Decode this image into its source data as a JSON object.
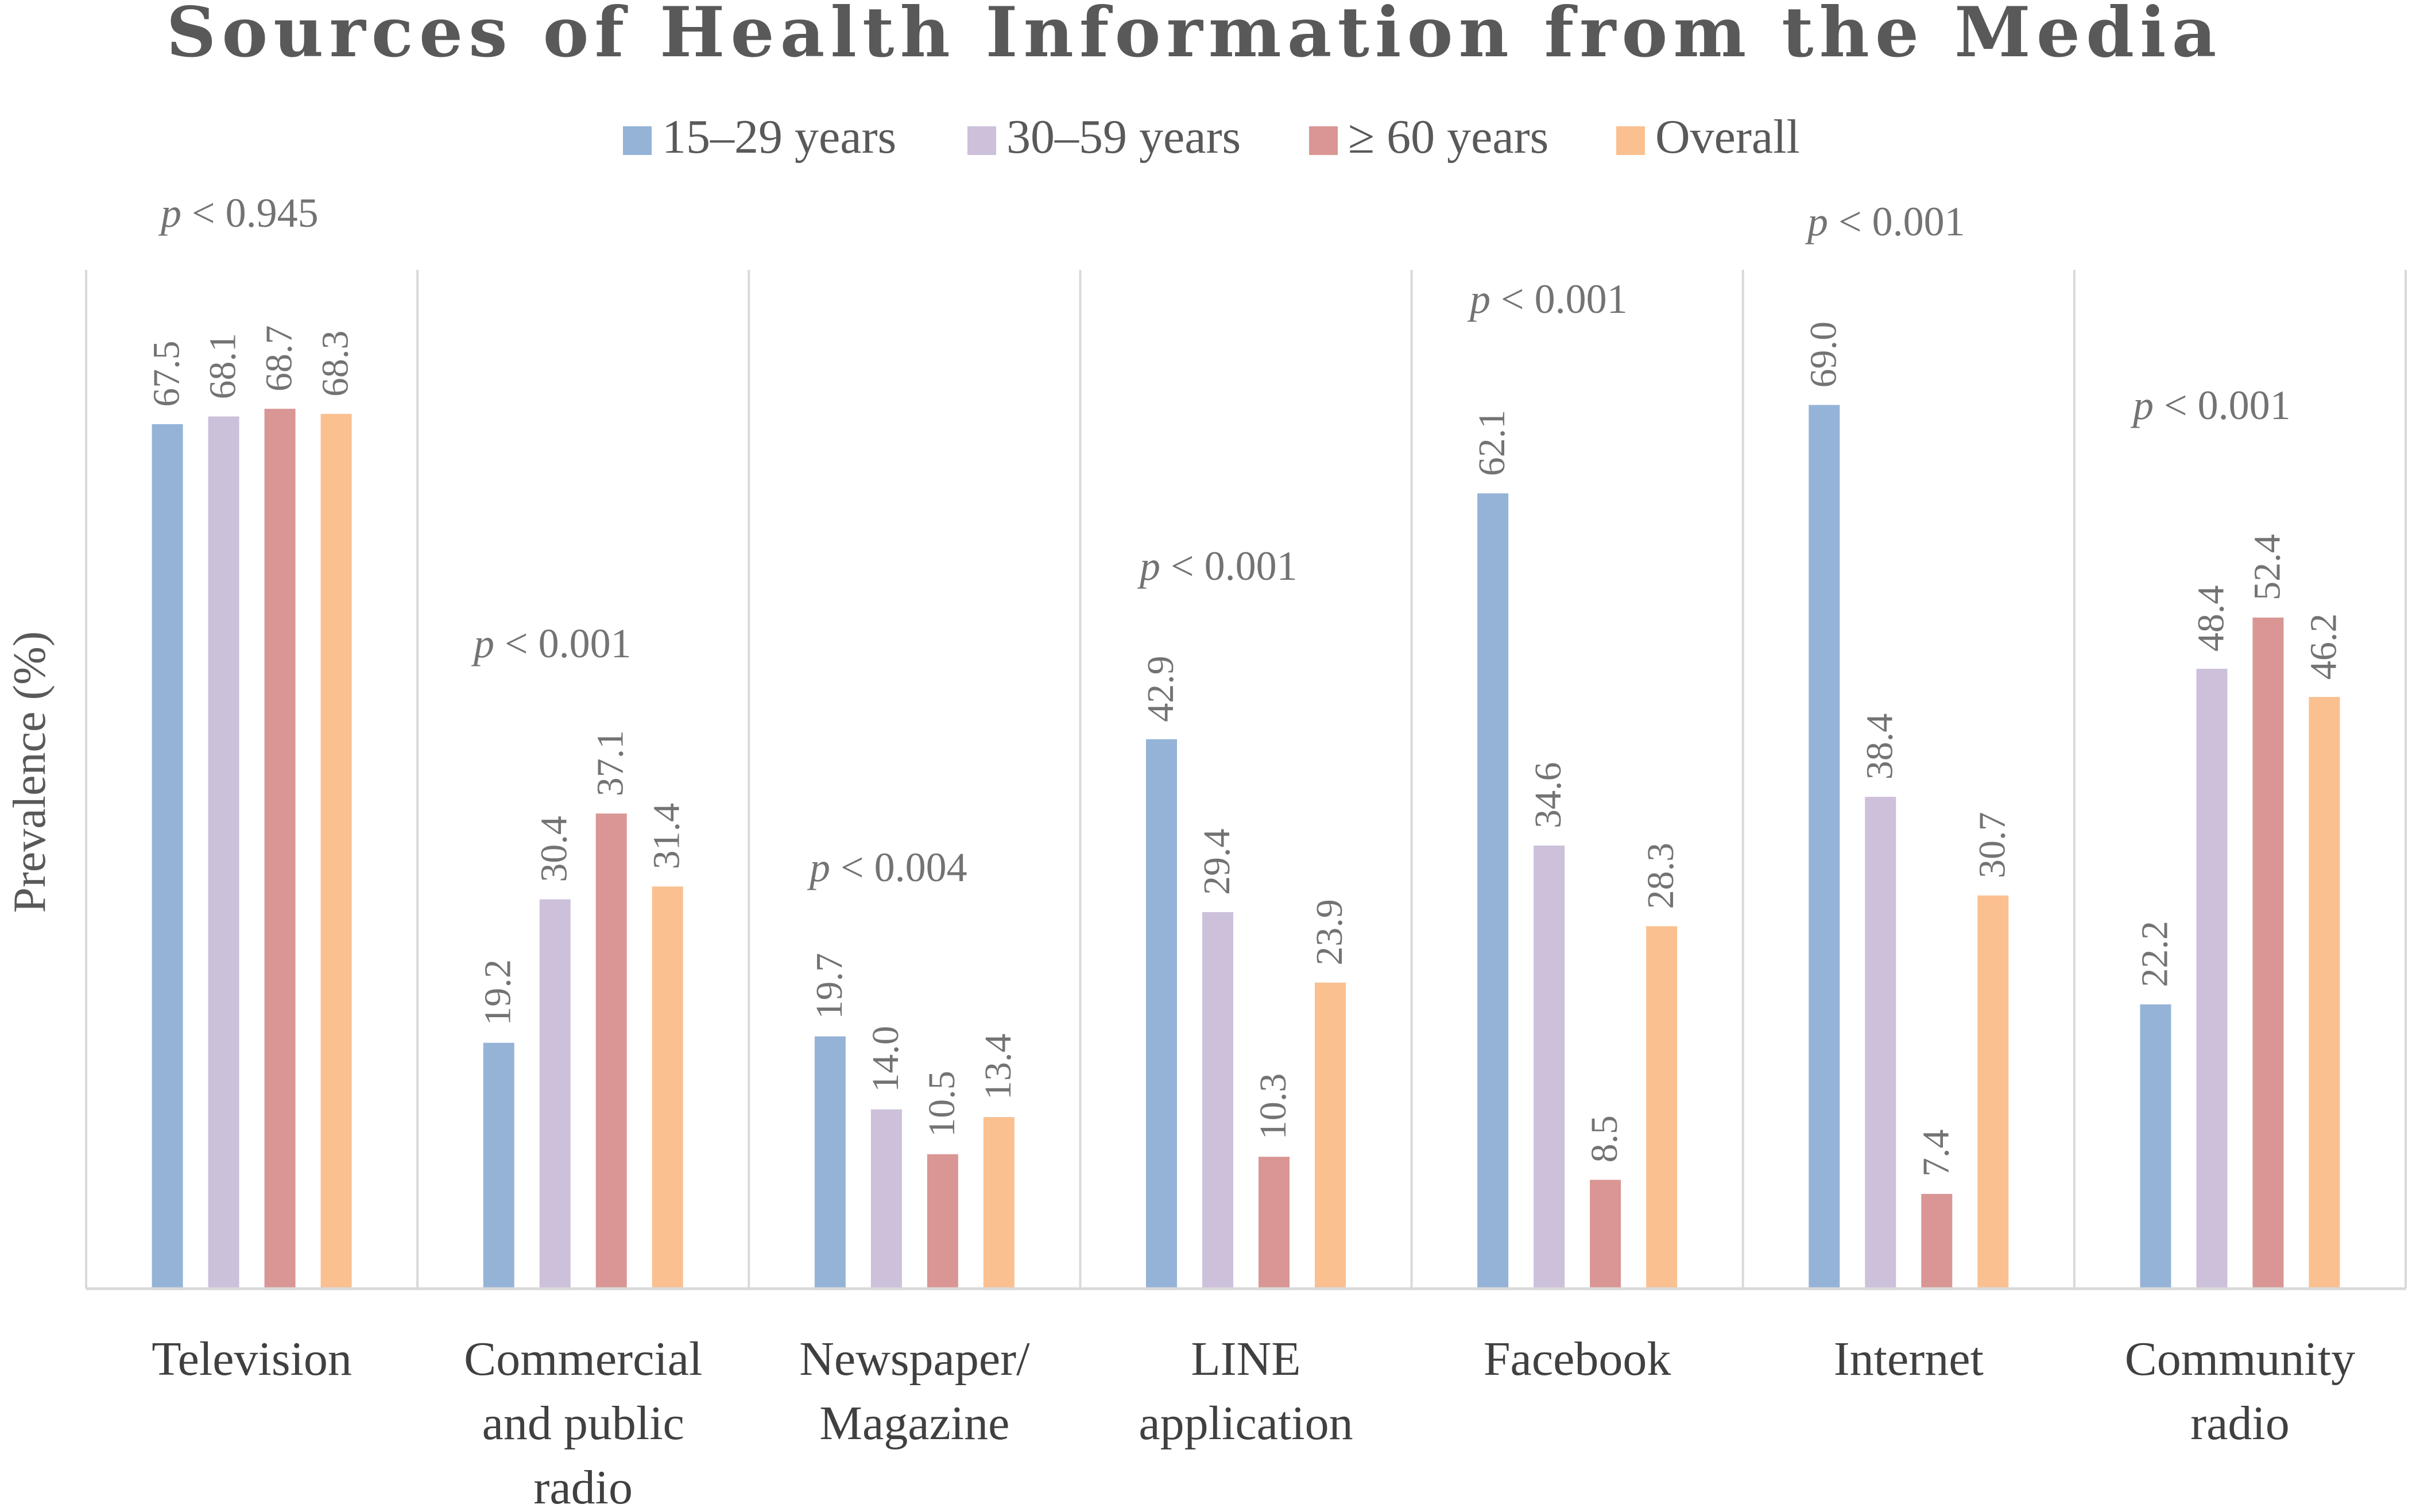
{
  "chart_data": {
    "type": "bar",
    "title": "Sources of Health Information from the Media",
    "xlabel": "",
    "ylabel": "Prevalence (%)",
    "ylim": [
      0,
      80
    ],
    "grid": false,
    "legend_position": "top",
    "categories": [
      [
        "Television"
      ],
      [
        "Commercial",
        "and public",
        "radio"
      ],
      [
        "Newspaper/",
        "Magazine"
      ],
      [
        "LINE",
        "application"
      ],
      [
        "Facebook"
      ],
      [
        "Internet"
      ],
      [
        "Community",
        "radio"
      ]
    ],
    "series": [
      {
        "name": "15–29 years",
        "color": "#95b3d7",
        "values": [
          67.5,
          19.2,
          19.7,
          42.9,
          62.1,
          69.0,
          22.2
        ]
      },
      {
        "name": "30–59 years",
        "color": "#ccc0da",
        "values": [
          68.1,
          30.4,
          14.0,
          29.4,
          34.6,
          38.4,
          48.4
        ]
      },
      {
        "name": "≥ 60 years",
        "color": "#d99694",
        "values": [
          68.7,
          37.1,
          10.5,
          10.3,
          8.5,
          7.4,
          52.4
        ]
      },
      {
        "name": "Overall",
        "color": "#fac090",
        "values": [
          68.3,
          31.4,
          13.4,
          23.9,
          28.3,
          30.7,
          46.2
        ]
      }
    ],
    "value_labels": [
      [
        "67.5",
        "19.2",
        "19.7",
        "42.9",
        "62.1",
        "69.0",
        "22.2"
      ],
      [
        "68.1",
        "30.4",
        "14.0",
        "29.4",
        "34.6",
        "38.4",
        "48.4"
      ],
      [
        "68.7",
        "37.1",
        "10.5",
        "10.3",
        "8.5",
        "7.4",
        "52.4"
      ],
      [
        "68.3",
        "31.4",
        "13.4",
        "23.9",
        "28.3",
        "30.7",
        "46.2"
      ]
    ],
    "annotations": [
      {
        "symbol": "p",
        "text": " < 0.945"
      },
      {
        "symbol": "p",
        "text": " < 0.001"
      },
      {
        "symbol": "p",
        "text": " < 0.004"
      },
      {
        "symbol": "p",
        "text": " < 0.001"
      },
      {
        "symbol": "p",
        "text": " < 0.001"
      },
      {
        "symbol": "p",
        "text": " < 0.001"
      },
      {
        "symbol": "p",
        "text": " < 0.001"
      }
    ]
  }
}
